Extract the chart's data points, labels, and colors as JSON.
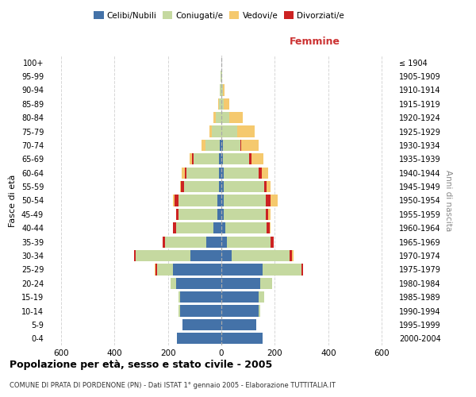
{
  "age_groups": [
    "0-4",
    "5-9",
    "10-14",
    "15-19",
    "20-24",
    "25-29",
    "30-34",
    "35-39",
    "40-44",
    "45-49",
    "50-54",
    "55-59",
    "60-64",
    "65-69",
    "70-74",
    "75-79",
    "80-84",
    "85-89",
    "90-94",
    "95-99",
    "100+"
  ],
  "birth_years": [
    "2000-2004",
    "1995-1999",
    "1990-1994",
    "1985-1989",
    "1980-1984",
    "1975-1979",
    "1970-1974",
    "1965-1969",
    "1960-1964",
    "1955-1959",
    "1950-1954",
    "1945-1949",
    "1940-1944",
    "1935-1939",
    "1930-1934",
    "1925-1929",
    "1920-1924",
    "1915-1919",
    "1910-1914",
    "1905-1909",
    "≤ 1904"
  ],
  "male": {
    "celibi": [
      165,
      145,
      155,
      155,
      170,
      180,
      115,
      55,
      30,
      15,
      15,
      10,
      10,
      10,
      5,
      0,
      0,
      0,
      0,
      0,
      0
    ],
    "coniugati": [
      0,
      0,
      5,
      5,
      20,
      60,
      205,
      155,
      140,
      145,
      145,
      130,
      120,
      95,
      55,
      35,
      20,
      8,
      5,
      2,
      0
    ],
    "vedovi": [
      0,
      0,
      0,
      0,
      0,
      5,
      0,
      0,
      0,
      0,
      5,
      5,
      10,
      10,
      15,
      10,
      10,
      5,
      2,
      0,
      0
    ],
    "divorziati": [
      0,
      0,
      0,
      0,
      0,
      5,
      5,
      10,
      10,
      10,
      15,
      10,
      8,
      5,
      0,
      0,
      0,
      0,
      0,
      0,
      0
    ]
  },
  "female": {
    "nubili": [
      155,
      130,
      140,
      140,
      145,
      155,
      40,
      20,
      15,
      10,
      10,
      10,
      10,
      5,
      5,
      0,
      0,
      0,
      0,
      0,
      0
    ],
    "coniugate": [
      0,
      0,
      5,
      20,
      45,
      145,
      215,
      165,
      155,
      155,
      155,
      150,
      130,
      100,
      65,
      60,
      30,
      10,
      5,
      2,
      0
    ],
    "vedove": [
      0,
      0,
      0,
      0,
      0,
      0,
      5,
      0,
      5,
      10,
      25,
      15,
      25,
      45,
      65,
      65,
      50,
      20,
      8,
      2,
      0
    ],
    "divorziate": [
      0,
      0,
      0,
      0,
      0,
      5,
      10,
      10,
      10,
      10,
      20,
      10,
      10,
      8,
      5,
      0,
      0,
      0,
      0,
      0,
      0
    ]
  },
  "colors": {
    "celibi": "#4472a8",
    "coniugati": "#c5d9a0",
    "vedovi": "#f5c96e",
    "divorziati": "#cc2222"
  },
  "xlim": 650,
  "title": "Popolazione per età, sesso e stato civile - 2005",
  "subtitle": "COMUNE DI PRATA DI PORDENONE (PN) - Dati ISTAT 1° gennaio 2005 - Elaborazione TUTTITALIA.IT",
  "xlabel_right": "Femmine",
  "ylabel_left": "Fasce di età",
  "ylabel_right": "Anni di nascita",
  "legend_labels": [
    "Celibi/Nubili",
    "Coniugati/e",
    "Vedovi/e",
    "Divorziati/e"
  ]
}
